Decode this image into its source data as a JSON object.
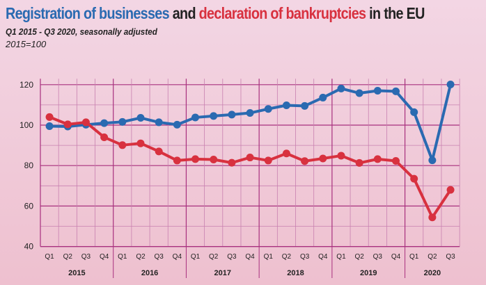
{
  "title": {
    "part1": "Registration of businesses",
    "part2": " and ",
    "part3": "declaration of bankruptcies",
    "part4": " in the EU"
  },
  "subtitle": "Q1 2015  - Q3 2020, seasonally adjusted",
  "base_note": "2015=100",
  "chart_data": {
    "type": "line",
    "title": "Registration of businesses and declaration of bankruptcies in the EU",
    "ylim": [
      40,
      125
    ],
    "yticks": [
      40,
      60,
      80,
      100,
      120
    ],
    "grid": true,
    "quarters": [
      "Q1",
      "Q2",
      "Q3",
      "Q4",
      "Q1",
      "Q2",
      "Q3",
      "Q4",
      "Q1",
      "Q2",
      "Q3",
      "Q4",
      "Q1",
      "Q2",
      "Q3",
      "Q4",
      "Q1",
      "Q2",
      "Q3",
      "Q4",
      "Q1",
      "Q2",
      "Q3"
    ],
    "years": [
      "2015",
      "2016",
      "2017",
      "2018",
      "2019",
      "2020"
    ],
    "series": [
      {
        "name": "Registration of businesses",
        "color": "#2a6ab1",
        "values": [
          99.5,
          99.3,
          100.2,
          101,
          101.6,
          103.6,
          101.4,
          100.2,
          103.8,
          104.5,
          105.2,
          106,
          108,
          109.8,
          109.5,
          113.6,
          118.1,
          115.8,
          117,
          116.7,
          106.4,
          82.6,
          120.1
        ]
      },
      {
        "name": "Declaration of bankruptcies",
        "color": "#d8313f",
        "values": [
          104,
          100.4,
          101.4,
          94,
          90.1,
          91,
          87,
          82.5,
          83.2,
          83,
          81.4,
          84,
          82.5,
          86,
          82.2,
          83.5,
          84.9,
          81.3,
          83.2,
          82.3,
          73.5,
          54.4,
          68
        ]
      }
    ]
  }
}
